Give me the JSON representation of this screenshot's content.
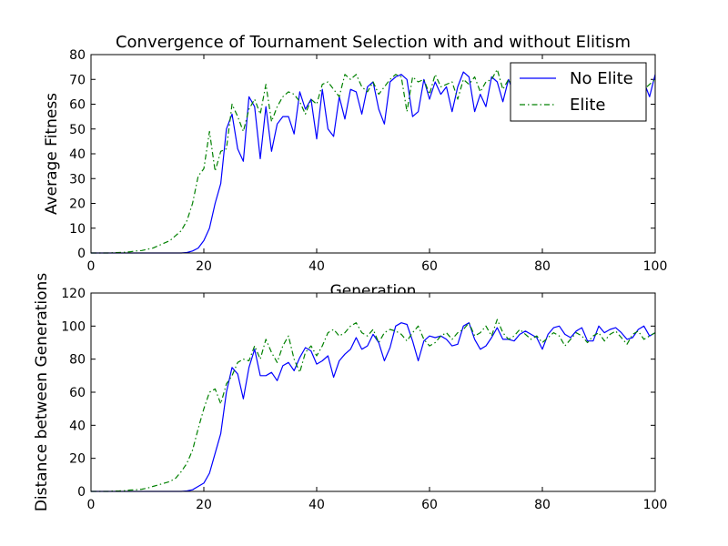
{
  "figure": {
    "title": "Convergence of Tournament Selection with and without Elitism"
  },
  "colors": {
    "no_elite": "#0000ff",
    "elite": "#008000"
  },
  "chart_data": [
    {
      "type": "line",
      "xlabel": "Generation",
      "ylabel": "Average Fitness",
      "xlim": [
        0,
        100
      ],
      "ylim": [
        0,
        80
      ],
      "xticks": [
        0,
        20,
        40,
        60,
        80,
        100
      ],
      "yticks": [
        0,
        10,
        20,
        30,
        40,
        50,
        60,
        70,
        80
      ],
      "grid": false,
      "legend": {
        "placement": "top-right",
        "entries": [
          "No Elite",
          "Elite"
        ]
      },
      "series": [
        {
          "name": "No Elite",
          "style": "solid",
          "color": "#0000ff",
          "x": [
            0,
            1,
            2,
            3,
            4,
            5,
            6,
            7,
            8,
            9,
            10,
            11,
            12,
            13,
            14,
            15,
            16,
            17,
            18,
            19,
            20,
            21,
            22,
            23,
            24,
            25,
            26,
            27,
            28,
            29,
            30,
            31,
            32,
            33,
            34,
            35,
            36,
            37,
            38,
            39,
            40,
            41,
            42,
            43,
            44,
            45,
            46,
            47,
            48,
            49,
            50,
            51,
            52,
            53,
            54,
            55,
            56,
            57,
            58,
            59,
            60,
            61,
            62,
            63,
            64,
            65,
            66,
            67,
            68,
            69,
            70,
            71,
            72,
            73,
            74,
            75,
            76,
            77,
            78,
            79,
            80,
            81,
            82,
            83,
            84,
            85,
            86,
            87,
            88,
            89,
            90,
            91,
            92,
            93,
            94,
            95,
            96,
            97,
            98,
            99,
            100
          ],
          "y": [
            0,
            0,
            0,
            0,
            0,
            0,
            0,
            0,
            0,
            0,
            0,
            0,
            0,
            0,
            0,
            0,
            0,
            0.2,
            0.8,
            2,
            5,
            10,
            20,
            28,
            50,
            56,
            42,
            37,
            63,
            59,
            38,
            59,
            41,
            52,
            55,
            55,
            48,
            65,
            58,
            62,
            46,
            66,
            50,
            47,
            63,
            54,
            66,
            65,
            56,
            67,
            69,
            58,
            52,
            69,
            71,
            72,
            70,
            55,
            57,
            70,
            62,
            69,
            64,
            67,
            57,
            67,
            73,
            71,
            57,
            64,
            59,
            71,
            69,
            61,
            70,
            64,
            66,
            64,
            69,
            64,
            70,
            67,
            66,
            71,
            64,
            68,
            63,
            64,
            70,
            65,
            68,
            69,
            66,
            68,
            66,
            62,
            68,
            67,
            69,
            63,
            72
          ]
        },
        {
          "name": "Elite",
          "style": "dashdot",
          "color": "#008000",
          "x": [
            0,
            1,
            2,
            3,
            4,
            5,
            6,
            7,
            8,
            9,
            10,
            11,
            12,
            13,
            14,
            15,
            16,
            17,
            18,
            19,
            20,
            21,
            22,
            23,
            24,
            25,
            26,
            27,
            28,
            29,
            30,
            31,
            32,
            33,
            34,
            35,
            36,
            37,
            38,
            39,
            40,
            41,
            42,
            43,
            44,
            45,
            46,
            47,
            48,
            49,
            50,
            51,
            52,
            53,
            54,
            55,
            56,
            57,
            58,
            59,
            60,
            61,
            62,
            63,
            64,
            65,
            66,
            67,
            68,
            69,
            70,
            71,
            72,
            73,
            74,
            75,
            76,
            77,
            78,
            79,
            80,
            81,
            82,
            83,
            84,
            85,
            86,
            87,
            88,
            89,
            90,
            91,
            92,
            93,
            94,
            95,
            96,
            97,
            98,
            99,
            100
          ],
          "y": [
            0,
            0,
            0,
            0,
            0.1,
            0.2,
            0.3,
            0.5,
            0.8,
            1,
            1.5,
            2,
            3,
            4,
            5,
            7,
            9,
            13,
            20,
            31,
            34,
            49,
            33,
            41,
            42,
            60,
            55,
            49,
            58,
            62,
            56,
            68,
            53,
            59,
            63,
            65,
            64,
            61,
            56,
            62,
            60,
            68,
            69,
            66,
            63,
            72,
            70,
            72,
            67,
            65,
            69,
            64,
            67,
            70,
            72,
            71,
            57,
            71,
            69,
            70,
            64,
            72,
            67,
            68,
            69,
            62,
            70,
            68,
            71,
            65,
            69,
            70,
            74,
            66,
            70,
            65,
            71,
            68,
            69,
            67,
            70,
            66,
            72,
            68,
            70,
            67,
            69,
            71,
            68,
            67,
            70,
            69,
            66,
            70,
            67,
            68,
            69,
            70,
            66,
            68,
            70
          ]
        }
      ]
    },
    {
      "type": "line",
      "xlabel": "",
      "ylabel": "Distance between Generations",
      "xlim": [
        0,
        100
      ],
      "ylim": [
        0,
        120
      ],
      "xticks": [
        0,
        20,
        40,
        60,
        80,
        100
      ],
      "yticks": [
        0,
        20,
        40,
        60,
        80,
        100,
        120
      ],
      "grid": false,
      "series": [
        {
          "name": "No Elite",
          "style": "solid",
          "color": "#0000ff",
          "x": [
            0,
            1,
            2,
            3,
            4,
            5,
            6,
            7,
            8,
            9,
            10,
            11,
            12,
            13,
            14,
            15,
            16,
            17,
            18,
            19,
            20,
            21,
            22,
            23,
            24,
            25,
            26,
            27,
            28,
            29,
            30,
            31,
            32,
            33,
            34,
            35,
            36,
            37,
            38,
            39,
            40,
            41,
            42,
            43,
            44,
            45,
            46,
            47,
            48,
            49,
            50,
            51,
            52,
            53,
            54,
            55,
            56,
            57,
            58,
            59,
            60,
            61,
            62,
            63,
            64,
            65,
            66,
            67,
            68,
            69,
            70,
            71,
            72,
            73,
            74,
            75,
            76,
            77,
            78,
            79,
            80,
            81,
            82,
            83,
            84,
            85,
            86,
            87,
            88,
            89,
            90,
            91,
            92,
            93,
            94,
            95,
            96,
            97,
            98,
            99,
            100
          ],
          "y": [
            0,
            0,
            0,
            0,
            0,
            0,
            0,
            0,
            0,
            0,
            0,
            0,
            0,
            0,
            0,
            0,
            0,
            0.3,
            1,
            3,
            5,
            11,
            23,
            35,
            60,
            75,
            71,
            56,
            75,
            86,
            70,
            70,
            72,
            67,
            76,
            78,
            73,
            81,
            87,
            85,
            77,
            79,
            82,
            69,
            79,
            83,
            86,
            93,
            86,
            88,
            95,
            90,
            79,
            87,
            100,
            102,
            101,
            91,
            79,
            91,
            94,
            93,
            94,
            92,
            88,
            89,
            100,
            102,
            92,
            86,
            88,
            93,
            99,
            92,
            92,
            91,
            95,
            97,
            95,
            93,
            86,
            95,
            99,
            100,
            95,
            93,
            97,
            99,
            91,
            91,
            100,
            96,
            98,
            99,
            96,
            92,
            93,
            98,
            100,
            94,
            96
          ]
        },
        {
          "name": "Elite",
          "style": "dashdot",
          "color": "#008000",
          "x": [
            0,
            1,
            2,
            3,
            4,
            5,
            6,
            7,
            8,
            9,
            10,
            11,
            12,
            13,
            14,
            15,
            16,
            17,
            18,
            19,
            20,
            21,
            22,
            23,
            24,
            25,
            26,
            27,
            28,
            29,
            30,
            31,
            32,
            33,
            34,
            35,
            36,
            37,
            38,
            39,
            40,
            41,
            42,
            43,
            44,
            45,
            46,
            47,
            48,
            49,
            50,
            51,
            52,
            53,
            54,
            55,
            56,
            57,
            58,
            59,
            60,
            61,
            62,
            63,
            64,
            65,
            66,
            67,
            68,
            69,
            70,
            71,
            72,
            73,
            74,
            75,
            76,
            77,
            78,
            79,
            80,
            81,
            82,
            83,
            84,
            85,
            86,
            87,
            88,
            89,
            90,
            91,
            92,
            93,
            94,
            95,
            96,
            97,
            98,
            99,
            100
          ],
          "y": [
            0,
            0,
            0,
            0,
            0.2,
            0.3,
            0.5,
            0.8,
            1,
            1.3,
            2,
            3,
            4,
            5,
            6,
            8,
            12,
            17,
            25,
            38,
            50,
            60,
            62,
            53,
            65,
            70,
            78,
            80,
            79,
            88,
            80,
            92,
            84,
            78,
            88,
            94,
            80,
            72,
            84,
            88,
            82,
            88,
            96,
            98,
            94,
            96,
            100,
            102,
            96,
            94,
            98,
            90,
            96,
            98,
            97,
            95,
            91,
            96,
            100,
            92,
            88,
            90,
            94,
            96,
            92,
            96,
            98,
            102,
            94,
            96,
            100,
            94,
            104,
            96,
            92,
            94,
            98,
            95,
            92,
            94,
            90,
            93,
            96,
            94,
            88,
            92,
            96,
            94,
            90,
            94,
            96,
            91,
            95,
            97,
            93,
            89,
            95,
            97,
            92,
            94,
            96
          ]
        }
      ]
    }
  ]
}
